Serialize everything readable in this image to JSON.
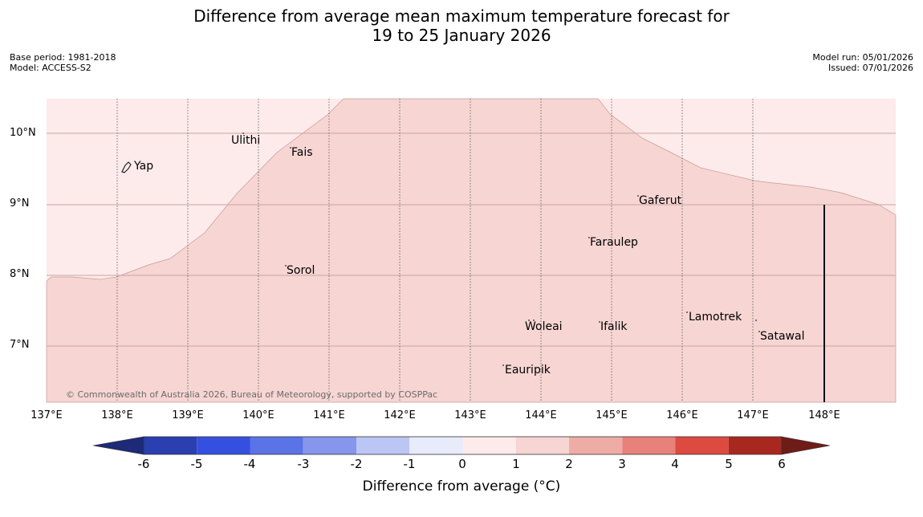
{
  "title": {
    "line1": "Difference from average mean maximum temperature forecast for",
    "line2": "19 to 25 January 2026"
  },
  "meta": {
    "base_period": "Base period: 1981-2018",
    "model": "Model: ACCESS-S2",
    "model_run": "Model run: 05/01/2026",
    "issued": "Issued: 07/01/2026"
  },
  "axes": {
    "lat_labels": [
      "10°N",
      "9°N",
      "8°N",
      "7°N"
    ],
    "lon_labels": [
      "137°E",
      "138°E",
      "139°E",
      "140°E",
      "141°E",
      "142°E",
      "143°E",
      "144°E",
      "145°E",
      "146°E",
      "147°E",
      "148°E"
    ]
  },
  "places": [
    "Yap",
    "Ulithi",
    "Fais",
    "Gaferut",
    "Faraulep",
    "Sorol",
    "Woleai",
    "Ifalik",
    "Lamotrek",
    "Satawal",
    "Eauripik"
  ],
  "credit": "© Commonwealth of Australia 2026, Bureau of Meteorology, supported by COSPPac",
  "colorbar": {
    "title": "Difference from average (°C)",
    "tick_labels": [
      "-6",
      "-5",
      "-4",
      "-3",
      "-2",
      "-1",
      "0",
      "1",
      "2",
      "3",
      "4",
      "5",
      "6"
    ],
    "colors": {
      "under": "#1c2a78",
      "bins": [
        "#2a3fb0",
        "#3550e0",
        "#5a73e6",
        "#8596ec",
        "#bcc6f4",
        "#e7ebfb",
        "#fcebea",
        "#f6d5d3",
        "#eeaca7",
        "#e8817a",
        "#dc4a40",
        "#a82820"
      ],
      "over": "#6e1c18"
    }
  },
  "fill_colors": {
    "band_0_1": "#fcebea",
    "band_1_2": "#f6d5d3"
  }
}
